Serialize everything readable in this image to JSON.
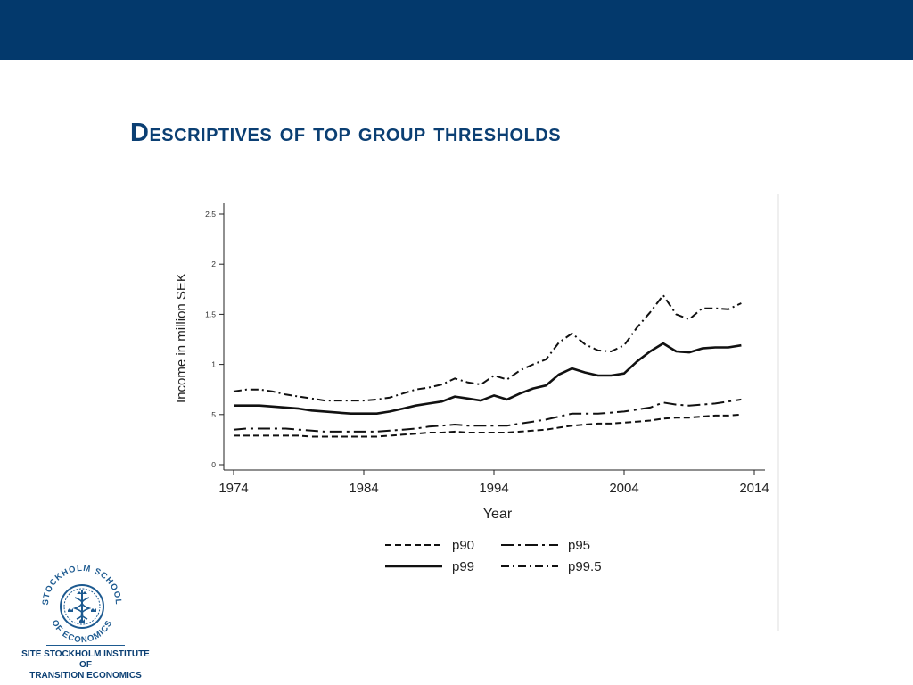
{
  "slide": {
    "title": "Descriptives of top group thresholds",
    "institute_line1": "SITE STOCKHOLM INSTITUTE OF",
    "institute_line2": "TRANSITION ECONOMICS",
    "logo_text": "STOCKHOLM SCHOOL OF ECONOMICS",
    "colors": {
      "header_bar": "#03396c",
      "title": "#0b3f73"
    }
  },
  "chart_data": {
    "type": "line",
    "xlabel": "Year",
    "ylabel": "Income in million SEK",
    "xlim": [
      1974,
      2014
    ],
    "ylim": [
      0,
      2.5
    ],
    "x_ticks": [
      1974,
      1984,
      1994,
      2004,
      2014
    ],
    "y_ticks": [
      0,
      0.5,
      1,
      1.5,
      2,
      2.5
    ],
    "y_tick_labels": [
      "0",
      ".5",
      "1",
      "1.5",
      "2",
      "2.5"
    ],
    "legend_position": "bottom",
    "grid": false,
    "x": [
      1974,
      1975,
      1976,
      1977,
      1978,
      1979,
      1980,
      1981,
      1982,
      1983,
      1984,
      1985,
      1986,
      1987,
      1988,
      1989,
      1990,
      1991,
      1992,
      1993,
      1994,
      1995,
      1996,
      1997,
      1998,
      1999,
      2000,
      2001,
      2002,
      2003,
      2004,
      2005,
      2006,
      2007,
      2008,
      2009,
      2010,
      2011,
      2012,
      2013
    ],
    "series": [
      {
        "name": "p90",
        "style": "dashed",
        "values": [
          0.29,
          0.29,
          0.29,
          0.29,
          0.29,
          0.29,
          0.28,
          0.28,
          0.28,
          0.28,
          0.28,
          0.28,
          0.29,
          0.3,
          0.31,
          0.32,
          0.32,
          0.33,
          0.32,
          0.32,
          0.32,
          0.32,
          0.33,
          0.34,
          0.35,
          0.37,
          0.39,
          0.4,
          0.41,
          0.41,
          0.42,
          0.43,
          0.44,
          0.46,
          0.47,
          0.47,
          0.48,
          0.49,
          0.49,
          0.5
        ]
      },
      {
        "name": "p95",
        "style": "longdash-dot",
        "values": [
          0.35,
          0.36,
          0.36,
          0.36,
          0.36,
          0.35,
          0.34,
          0.33,
          0.33,
          0.33,
          0.33,
          0.33,
          0.34,
          0.35,
          0.36,
          0.38,
          0.39,
          0.4,
          0.39,
          0.39,
          0.39,
          0.39,
          0.41,
          0.43,
          0.45,
          0.48,
          0.51,
          0.51,
          0.51,
          0.52,
          0.53,
          0.55,
          0.57,
          0.62,
          0.6,
          0.59,
          0.6,
          0.61,
          0.63,
          0.65
        ]
      },
      {
        "name": "p99",
        "style": "solid",
        "values": [
          0.59,
          0.59,
          0.59,
          0.58,
          0.57,
          0.56,
          0.54,
          0.53,
          0.52,
          0.51,
          0.51,
          0.51,
          0.53,
          0.56,
          0.59,
          0.61,
          0.63,
          0.68,
          0.66,
          0.64,
          0.69,
          0.65,
          0.71,
          0.76,
          0.79,
          0.9,
          0.96,
          0.92,
          0.89,
          0.89,
          0.91,
          1.03,
          1.13,
          1.21,
          1.13,
          1.12,
          1.16,
          1.17,
          1.17,
          1.19
        ]
      },
      {
        "name": "p99.5",
        "style": "dash-dot",
        "values": [
          0.73,
          0.75,
          0.75,
          0.73,
          0.7,
          0.68,
          0.66,
          0.64,
          0.64,
          0.64,
          0.64,
          0.65,
          0.67,
          0.71,
          0.75,
          0.77,
          0.8,
          0.86,
          0.82,
          0.8,
          0.89,
          0.85,
          0.94,
          1.0,
          1.05,
          1.22,
          1.31,
          1.2,
          1.14,
          1.13,
          1.19,
          1.37,
          1.52,
          1.69,
          1.5,
          1.45,
          1.56,
          1.56,
          1.55,
          1.61
        ]
      }
    ]
  }
}
